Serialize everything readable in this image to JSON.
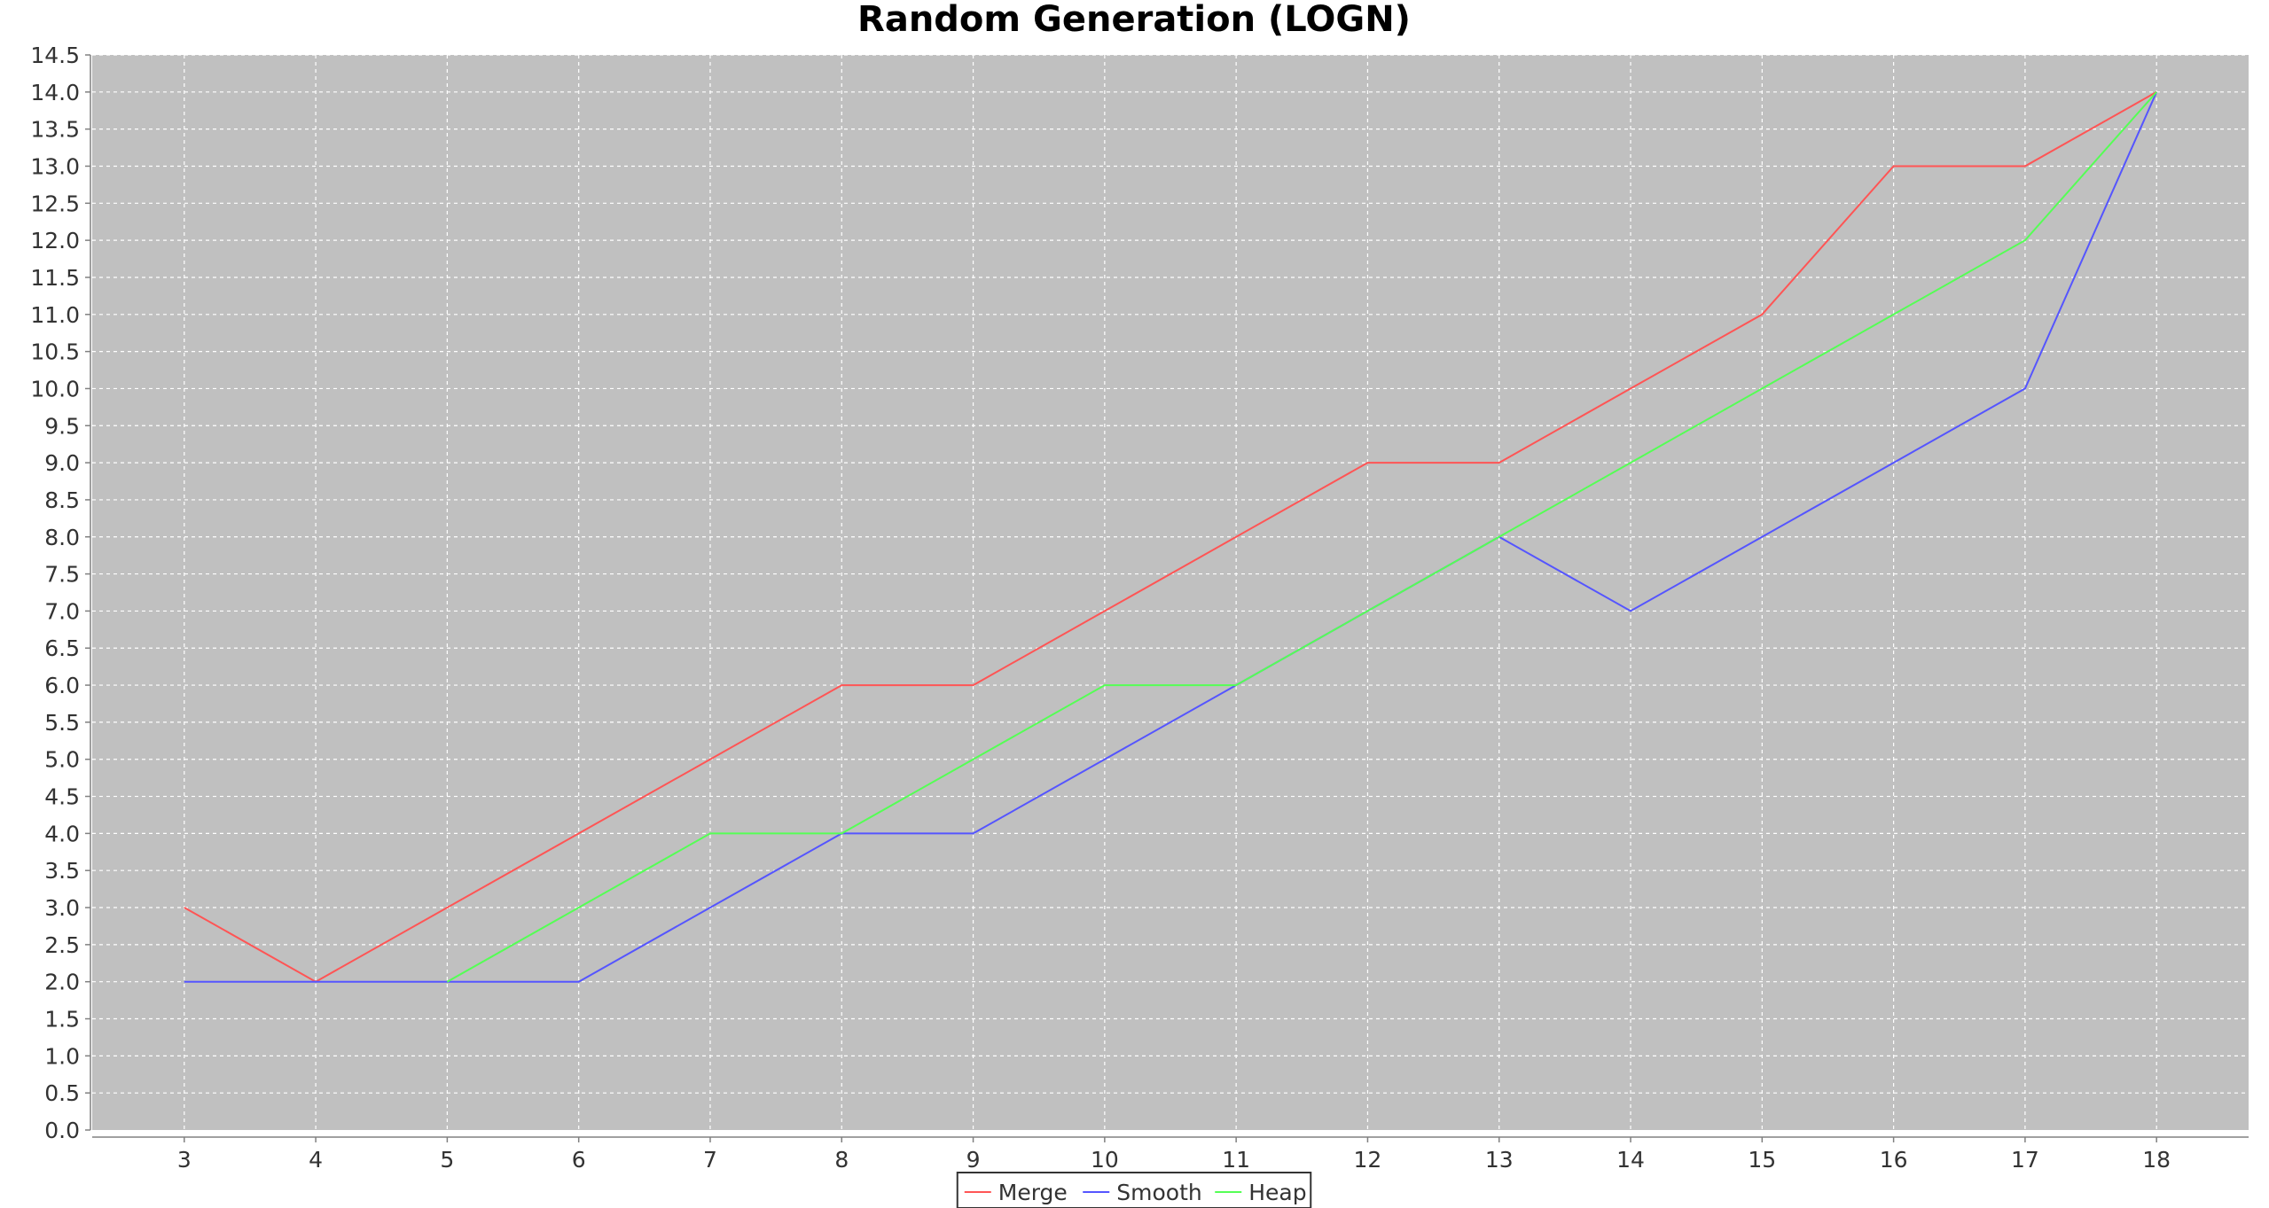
{
  "chart_data": {
    "type": "line",
    "title": "Random Generation (LOGN)",
    "xlabel": "",
    "ylabel": "",
    "x": [
      3,
      4,
      5,
      6,
      7,
      8,
      9,
      10,
      11,
      12,
      13,
      14,
      15,
      16,
      17,
      18
    ],
    "xlim": [
      2.3,
      18.7
    ],
    "ylim": [
      0,
      14.5
    ],
    "y_tick_step": 0.5,
    "grid": true,
    "legend_position": "bottom-center",
    "background": "#c0c0c0",
    "series": [
      {
        "name": "Merge",
        "color": "#ff5555",
        "values": [
          3,
          2,
          3,
          4,
          5,
          6,
          6,
          7,
          8,
          9,
          9,
          10,
          11,
          13,
          13,
          14
        ]
      },
      {
        "name": "Smooth",
        "color": "#5555ff",
        "values": [
          2,
          2,
          2,
          2,
          3,
          4,
          4,
          5,
          6,
          7,
          8,
          7,
          8,
          9,
          10,
          14
        ]
      },
      {
        "name": "Heap",
        "color": "#55ff55",
        "values": [
          null,
          null,
          2,
          3,
          4,
          4,
          5,
          6,
          6,
          7,
          8,
          9,
          10,
          11,
          12,
          14
        ]
      }
    ]
  }
}
